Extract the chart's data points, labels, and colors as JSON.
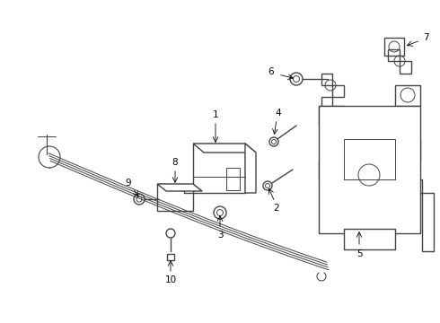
{
  "bg_color": "#ffffff",
  "line_color": "#444444",
  "lw": 1.0,
  "lw_thin": 0.7,
  "lw_cable": 0.75
}
